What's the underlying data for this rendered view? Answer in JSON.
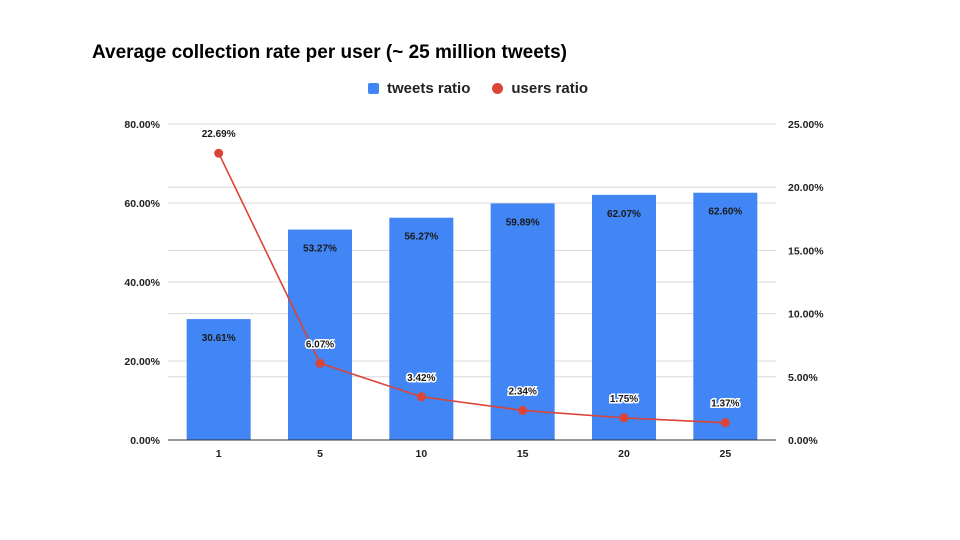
{
  "chart_data": {
    "type": "bar",
    "title": "Average collection rate per user (~ 25 million tweets)",
    "categories": [
      "1",
      "5",
      "10",
      "15",
      "20",
      "25"
    ],
    "series": [
      {
        "name": "tweets ratio",
        "type": "bar",
        "axis": "left",
        "color": "#4285f4",
        "values": [
          30.61,
          53.27,
          56.27,
          59.89,
          62.07,
          62.6
        ],
        "labels": [
          "30.61%",
          "53.27%",
          "56.27%",
          "59.89%",
          "62.07%",
          "62.60%"
        ]
      },
      {
        "name": "users ratio",
        "type": "line",
        "axis": "right",
        "color": "#db4437",
        "values": [
          22.69,
          6.07,
          3.42,
          2.34,
          1.75,
          1.37
        ],
        "labels": [
          "22.69%",
          "6.07%",
          "3.42%",
          "2.34%",
          "1.75%",
          "1.37%"
        ]
      }
    ],
    "y_left": {
      "ylim": [
        0,
        80
      ],
      "ticks": [
        0,
        20,
        40,
        60,
        80
      ],
      "tick_labels": [
        "0.00%",
        "20.00%",
        "40.00%",
        "60.00%",
        "80.00%"
      ]
    },
    "y_right": {
      "ylim": [
        0,
        25
      ],
      "ticks": [
        0,
        5,
        10,
        15,
        20,
        25
      ],
      "tick_labels": [
        "0.00%",
        "5.00%",
        "10.00%",
        "15.00%",
        "20.00%",
        "25.00%"
      ]
    },
    "grid": true,
    "legend_position": "top-center",
    "gridline_color": "#d9d9d9",
    "axis_line_color": "#333333"
  }
}
